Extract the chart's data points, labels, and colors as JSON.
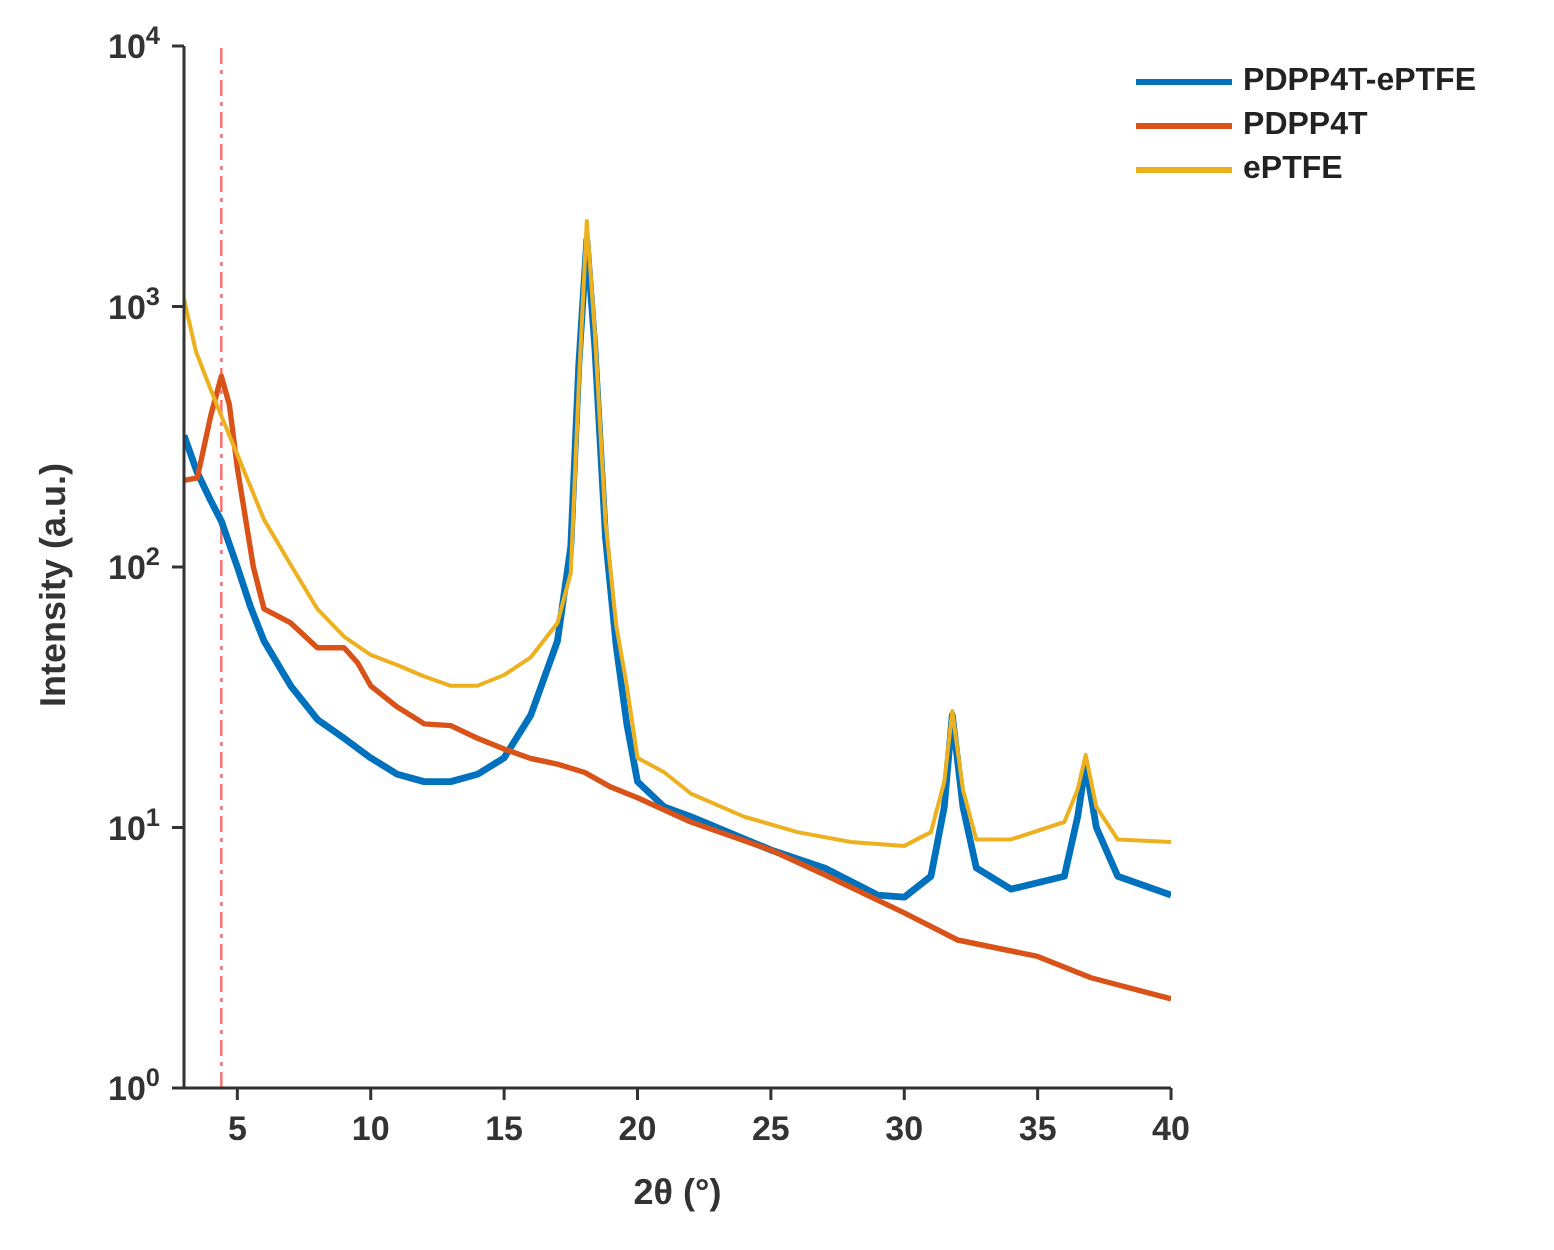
{
  "chart_data": {
    "type": "line",
    "xlabel": "2θ (°)",
    "ylabel": "Intensity (a.u.)",
    "xlim": [
      3,
      40
    ],
    "xticks": [
      5,
      10,
      15,
      20,
      25,
      30,
      35,
      40
    ],
    "ylim": [
      1,
      10000
    ],
    "yticks": [
      {
        "value": 1,
        "label": "10$^{0}$"
      },
      {
        "value": 10,
        "label": "10$^{1}$"
      },
      {
        "value": 100,
        "label": "10$^{2}$"
      },
      {
        "value": 1000,
        "label": "10$^{3}$"
      },
      {
        "value": 10000,
        "label": "10$^{4}$"
      }
    ],
    "log": true,
    "grid": false,
    "legend": "top right",
    "marker": "none",
    "line_style": "solid",
    "ref_lines": [
      {
        "axis": "x",
        "value": 4.4,
        "color": "#ff6b6b",
        "line_style": "dashdot"
      }
    ],
    "series": [
      {
        "name": "PDPP4T-ePTFE",
        "color": "#0072bd",
        "x": [
          3,
          3.5,
          4,
          4.4,
          5,
          5.5,
          6,
          7,
          8,
          9,
          10,
          11,
          12,
          13,
          14,
          15,
          16,
          17,
          17.5,
          17.8,
          18.1,
          18.4,
          18.8,
          19.2,
          19.6,
          20,
          21,
          22,
          25,
          27,
          29,
          30,
          31,
          31.5,
          31.8,
          32.2,
          32.7,
          34,
          36,
          36.5,
          36.8,
          37.2,
          38,
          40
        ],
        "values": [
          320,
          230,
          180,
          150,
          100,
          70,
          52,
          35,
          26,
          22,
          18.5,
          16,
          15,
          15,
          16,
          18.5,
          27,
          52,
          120,
          600,
          1800,
          700,
          130,
          50,
          25,
          15,
          12,
          11,
          8.2,
          7,
          5.5,
          5.4,
          6.5,
          12,
          27,
          12,
          7,
          5.8,
          6.5,
          11,
          17.5,
          10,
          6.5,
          5.5
        ]
      },
      {
        "name": "PDPP4T",
        "color": "#d95319",
        "x": [
          3,
          3.5,
          4,
          4.4,
          4.7,
          5,
          5.6,
          6,
          7,
          8,
          9,
          9.5,
          10,
          11,
          12,
          13,
          14,
          15,
          16,
          17,
          18,
          19,
          20,
          22,
          25,
          27,
          30,
          32,
          35,
          37,
          40
        ],
        "values": [
          215,
          220,
          380,
          540,
          420,
          240,
          100,
          69,
          61,
          49,
          49,
          43,
          35,
          29,
          25,
          24.6,
          22,
          20,
          18.4,
          17.5,
          16.3,
          14.3,
          13,
          10.5,
          8.2,
          6.6,
          4.7,
          3.7,
          3.2,
          2.65,
          2.2
        ]
      },
      {
        "name": "ePTFE",
        "color": "#edb120",
        "x": [
          3,
          3.45,
          4,
          4.4,
          5,
          6,
          7,
          8,
          9,
          10,
          11,
          12,
          13,
          14,
          15,
          16,
          17,
          17.5,
          17.8,
          18.1,
          18.4,
          18.8,
          19.2,
          19.6,
          20,
          21,
          22,
          24,
          26,
          28,
          30,
          31,
          31.5,
          31.8,
          32.2,
          32.7,
          34,
          36,
          36.5,
          36.8,
          37.2,
          38,
          40
        ],
        "values": [
          1070,
          670,
          480,
          380,
          270,
          152,
          102,
          69,
          54,
          46,
          42,
          38,
          35,
          35,
          38.5,
          45,
          61,
          95,
          500,
          2130,
          800,
          150,
          60,
          35,
          18.5,
          16.3,
          13.5,
          11,
          9.6,
          8.8,
          8.5,
          9.6,
          15,
          28,
          14,
          9,
          9,
          10.5,
          14,
          19,
          12,
          9,
          8.8
        ]
      }
    ]
  }
}
